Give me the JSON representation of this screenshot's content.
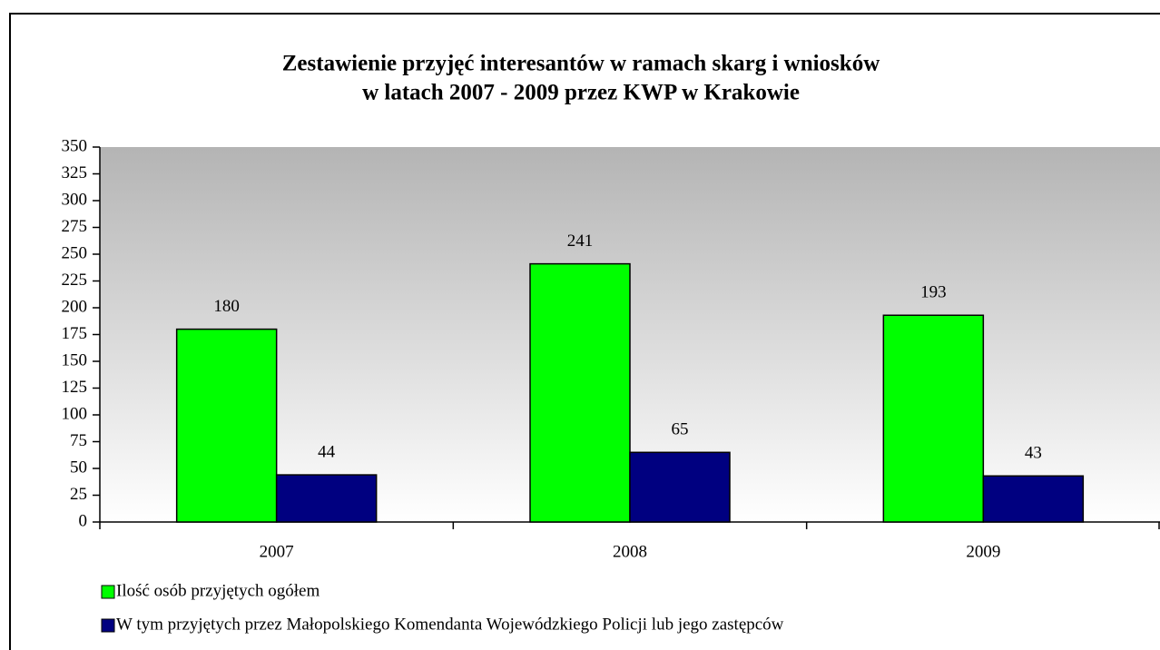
{
  "chart_data": {
    "type": "bar",
    "title": [
      "Zestawienie przyjęć interesantów w ramach skarg i  wniosków",
      "w latach 2007 - 2009 przez KWP  w Krakowie"
    ],
    "categories": [
      "2007",
      "2008",
      "2009"
    ],
    "series": [
      {
        "name": "Ilość osób przyjętych ogółem",
        "color": "#00ff00",
        "values": [
          180,
          241,
          193
        ]
      },
      {
        "name": "W tym przyjętych przez Małopolskiego Komendanta Wojewódzkiego Policji lub jego zastępców",
        "color": "#000080",
        "values": [
          44,
          65,
          43
        ]
      }
    ],
    "ylim": [
      0,
      350
    ],
    "yticks": [
      0,
      25,
      50,
      75,
      100,
      125,
      150,
      175,
      200,
      225,
      250,
      275,
      300,
      325,
      350
    ],
    "legend": "bottom-left"
  }
}
